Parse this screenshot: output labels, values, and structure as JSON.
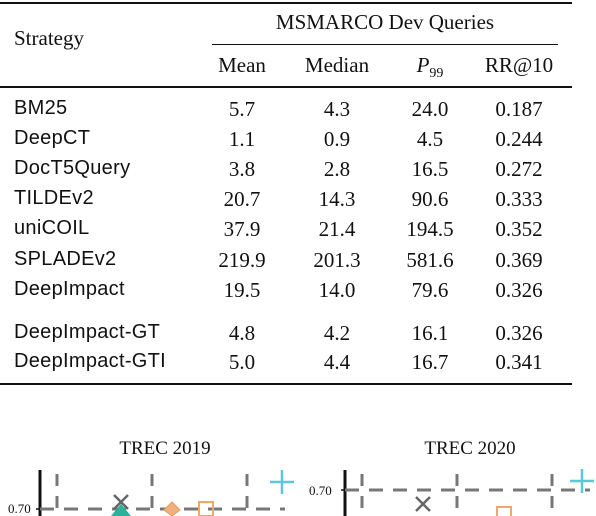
{
  "table": {
    "group_header": "MSMARCO Dev Queries",
    "strategy_header": "Strategy",
    "columns": {
      "mean": "Mean",
      "median": "Median",
      "p_main": "P",
      "p_sub": "99",
      "rr": "RR@10"
    },
    "rows": [
      {
        "name": "BM25",
        "mean": "5.7",
        "median": "4.3",
        "p99": "24.0",
        "rr": "0.187"
      },
      {
        "name": "DeepCT",
        "mean": "1.1",
        "median": "0.9",
        "p99": "4.5",
        "rr": "0.244"
      },
      {
        "name": "DocT5Query",
        "mean": "3.8",
        "median": "2.8",
        "p99": "16.5",
        "rr": "0.272"
      },
      {
        "name": "TILDEv2",
        "mean": "20.7",
        "median": "14.3",
        "p99": "90.6",
        "rr": "0.333"
      },
      {
        "name": "uniCOIL",
        "mean": "37.9",
        "median": "21.4",
        "p99": "194.5",
        "rr": "0.352"
      },
      {
        "name": "SPLADEv2",
        "mean": "219.9",
        "median": "201.3",
        "p99": "581.6",
        "rr": "0.369"
      },
      {
        "name": "DeepImpact",
        "mean": "19.5",
        "median": "14.0",
        "p99": "79.6",
        "rr": "0.326"
      },
      {
        "name": "DeepImpact-GT",
        "mean": "4.8",
        "median": "4.2",
        "p99": "16.1",
        "rr": "0.326"
      },
      {
        "name": "DeepImpact-GTI",
        "mean": "5.0",
        "median": "4.4",
        "p99": "16.7",
        "rr": "0.341"
      }
    ]
  },
  "plots": {
    "left": {
      "title": "TREC 2019",
      "tick_label": "0.70"
    },
    "right": {
      "title": "TREC 2020",
      "tick_label": "0.70"
    },
    "colors": {
      "grid": "#777777",
      "cyan": "#5bc8d8",
      "orange": "#f0a868",
      "teal": "#2ab39a",
      "gray": "#666666"
    }
  }
}
